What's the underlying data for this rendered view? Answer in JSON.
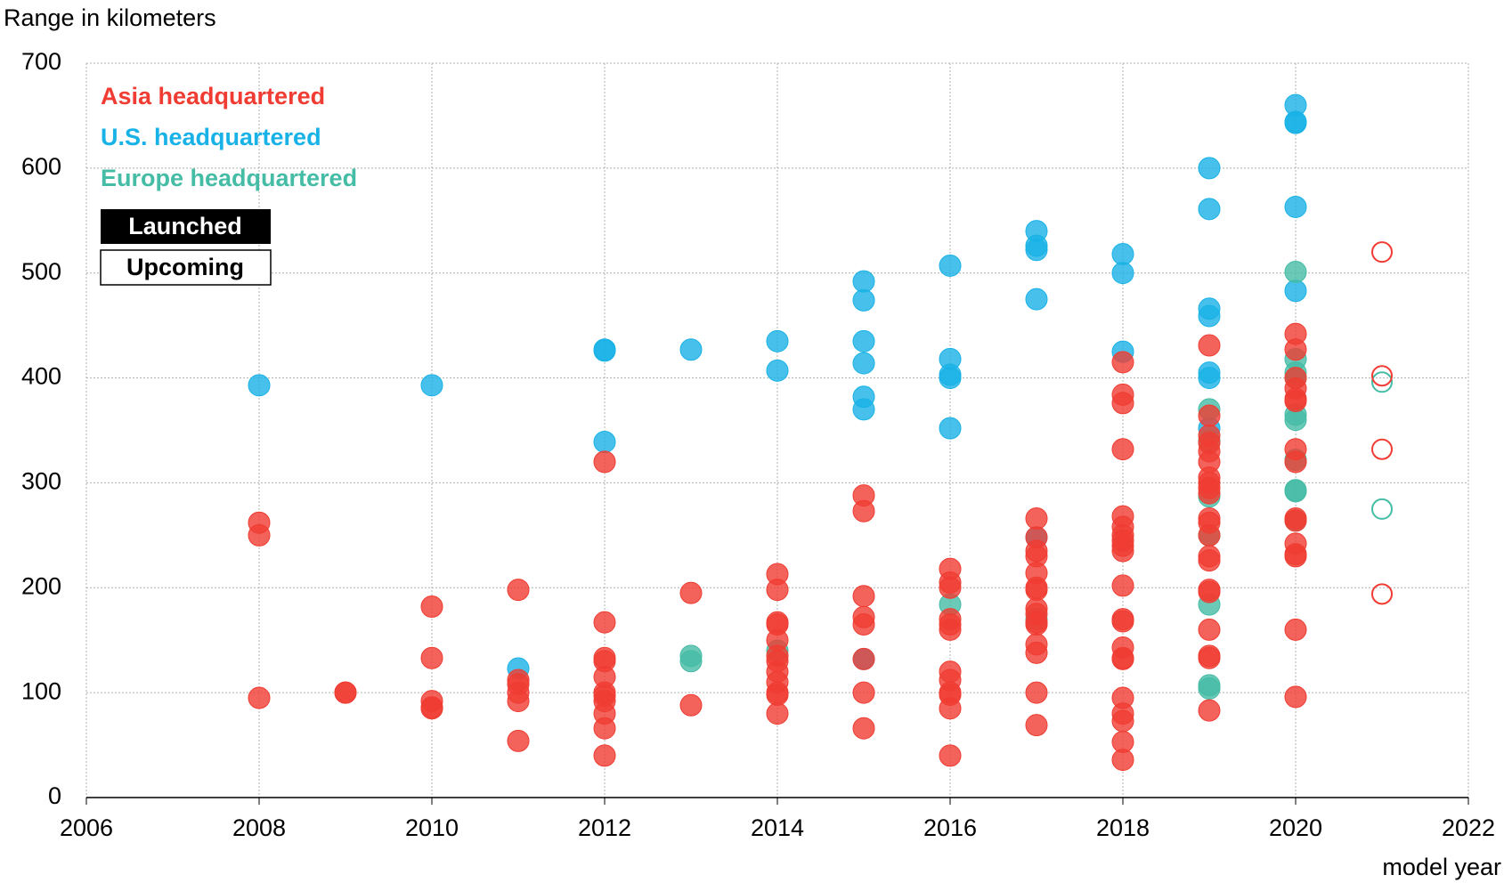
{
  "chart_data": {
    "type": "scatter",
    "title": "Range in kilometers",
    "x_label": "model year",
    "xlim": [
      2006,
      2022
    ],
    "xticks": [
      2006,
      2008,
      2010,
      2012,
      2014,
      2016,
      2018,
      2020,
      2022
    ],
    "ylim": [
      0,
      700
    ],
    "yticks": [
      0,
      100,
      200,
      300,
      400,
      500,
      600,
      700
    ],
    "grid": true,
    "legend": {
      "launched": "Launched",
      "upcoming": "Upcoming"
    },
    "series": [
      {
        "name": "U.S. headquartered",
        "color": "#19b2e6",
        "x": [
          2008,
          2010,
          2011,
          2012,
          2012,
          2012,
          2013,
          2014,
          2014,
          2015,
          2015,
          2015,
          2015,
          2015,
          2015,
          2015,
          2016,
          2016,
          2016,
          2016,
          2016,
          2017,
          2017,
          2017,
          2017,
          2017,
          2018,
          2018,
          2018,
          2019,
          2019,
          2019,
          2019,
          2019,
          2019,
          2019,
          2020,
          2020,
          2020,
          2020,
          2020
        ],
        "values": [
          393,
          393,
          123,
          427,
          426,
          339,
          427,
          435,
          407,
          492,
          474,
          435,
          414,
          382,
          370,
          132,
          507,
          418,
          403,
          400,
          352,
          540,
          526,
          522,
          475,
          248,
          518,
          500,
          425,
          600,
          561,
          466,
          459,
          405,
          400,
          352,
          660,
          643,
          644,
          563,
          483
        ],
        "upcoming_x": [],
        "upcoming_values": []
      },
      {
        "name": "Europe headquartered",
        "color": "#45bca5",
        "x": [
          2013,
          2013,
          2014,
          2016,
          2017,
          2019,
          2019,
          2019,
          2019,
          2019,
          2019,
          2019,
          2020,
          2020,
          2020,
          2020,
          2020,
          2020,
          2020,
          2020,
          2020,
          2020
        ],
        "values": [
          135,
          130,
          140,
          184,
          170,
          370,
          287,
          250,
          184,
          107,
          104,
          340,
          501,
          418,
          405,
          400,
          365,
          360,
          322,
          293,
          292,
          264
        ],
        "upcoming_x": [
          2021,
          2021
        ],
        "upcoming_values": [
          275,
          396
        ]
      },
      {
        "name": "Asia headquartered",
        "color": "#f03c32",
        "x": [
          2008,
          2008,
          2008,
          2009,
          2009,
          2010,
          2010,
          2010,
          2010,
          2010,
          2011,
          2011,
          2011,
          2011,
          2011,
          2011,
          2012,
          2012,
          2012,
          2012,
          2012,
          2012,
          2012,
          2012,
          2012,
          2012,
          2012,
          2013,
          2013,
          2014,
          2014,
          2014,
          2014,
          2014,
          2014,
          2014,
          2014,
          2014,
          2014,
          2014,
          2014,
          2015,
          2015,
          2015,
          2015,
          2015,
          2015,
          2015,
          2015,
          2016,
          2016,
          2016,
          2016,
          2016,
          2016,
          2016,
          2016,
          2016,
          2016,
          2016,
          2016,
          2017,
          2017,
          2017,
          2017,
          2017,
          2017,
          2017,
          2017,
          2017,
          2017,
          2017,
          2017,
          2017,
          2017,
          2017,
          2018,
          2018,
          2018,
          2018,
          2018,
          2018,
          2018,
          2018,
          2018,
          2018,
          2018,
          2018,
          2018,
          2018,
          2018,
          2018,
          2018,
          2018,
          2018,
          2018,
          2018,
          2019,
          2019,
          2019,
          2019,
          2019,
          2019,
          2019,
          2019,
          2019,
          2019,
          2019,
          2019,
          2019,
          2019,
          2019,
          2019,
          2019,
          2019,
          2019,
          2019,
          2019,
          2020,
          2020,
          2020,
          2020,
          2020,
          2020,
          2020,
          2020,
          2020,
          2020,
          2020,
          2020,
          2020,
          2020,
          2020
        ],
        "values": [
          262,
          250,
          95,
          100,
          100,
          182,
          133,
          92,
          86,
          85,
          198,
          112,
          108,
          100,
          92,
          54,
          320,
          167,
          133,
          130,
          115,
          100,
          97,
          92,
          80,
          66,
          40,
          195,
          88,
          213,
          198,
          167,
          165,
          150,
          135,
          130,
          120,
          110,
          100,
          98,
          80,
          288,
          273,
          192,
          172,
          165,
          132,
          100,
          66,
          218,
          205,
          200,
          170,
          165,
          160,
          120,
          112,
          100,
          98,
          85,
          40,
          266,
          248,
          235,
          230,
          214,
          200,
          198,
          180,
          175,
          167,
          165,
          146,
          138,
          100,
          69,
          415,
          384,
          376,
          332,
          268,
          258,
          250,
          245,
          240,
          235,
          202,
          170,
          168,
          143,
          133,
          132,
          95,
          80,
          73,
          53,
          36,
          431,
          364,
          345,
          338,
          330,
          320,
          305,
          300,
          295,
          290,
          266,
          262,
          250,
          230,
          226,
          198,
          196,
          160,
          135,
          133,
          83,
          442,
          427,
          400,
          390,
          380,
          378,
          332,
          320,
          266,
          264,
          242,
          232,
          230,
          160,
          96
        ],
        "upcoming_x": [
          2021,
          2021,
          2021,
          2021
        ],
        "upcoming_values": [
          520,
          402,
          332,
          194
        ]
      }
    ]
  }
}
